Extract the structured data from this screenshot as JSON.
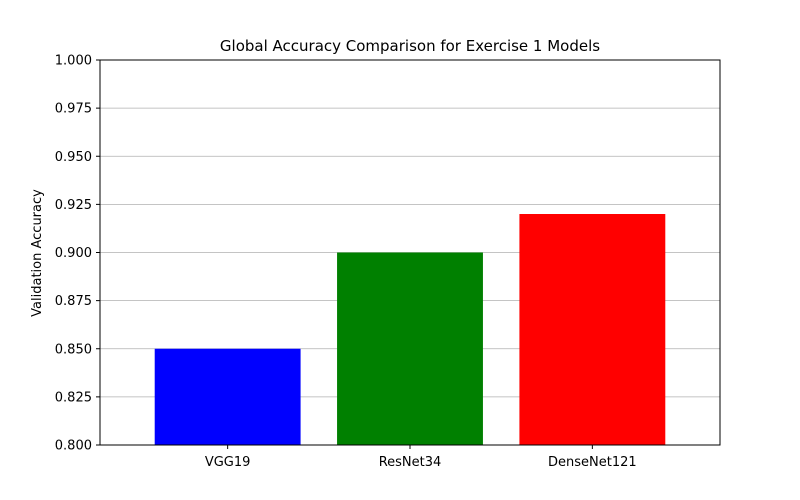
{
  "chart_data": {
    "type": "bar",
    "title": "Global Accuracy Comparison for Exercise 1 Models",
    "xlabel": "",
    "ylabel": "Validation Accuracy",
    "categories": [
      "VGG19",
      "ResNet34",
      "DenseNet121"
    ],
    "values": [
      0.85,
      0.9,
      0.92
    ],
    "colors": [
      "#0000ff",
      "#008000",
      "#ff0000"
    ],
    "ylim": [
      0.8,
      1.0
    ],
    "yticks": [
      "0.800",
      "0.825",
      "0.850",
      "0.875",
      "0.900",
      "0.925",
      "0.950",
      "0.975",
      "1.000"
    ],
    "grid": "y-axis",
    "legend": "none"
  }
}
